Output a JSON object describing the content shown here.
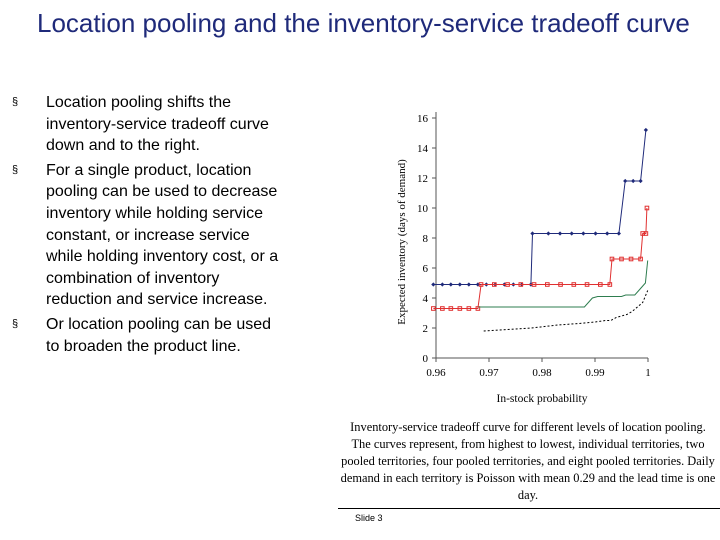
{
  "slide": {
    "title": "Location pooling and the inventory-service tradeoff curve",
    "bullets": [
      "Location pooling shifts the inventory-service tradeoff curve down and to the right.",
      "For a single product, location pooling can be used to decrease inventory while holding service constant, or increase service while holding inventory cost, or a combination of inventory reduction and service increase.",
      "Or location pooling can be used to broaden the product line."
    ],
    "bullet_marker": "§",
    "caption": "Inventory-service tradeoff curve for different levels of location pooling. The curves represent, from highest to lowest, individual territories, two pooled territories, four pooled territories, and eight pooled territories.  Daily demand in each territory is Poisson with mean 0.29 and the lead time is one day.",
    "slide_number": "Slide 3"
  },
  "chart_data": {
    "type": "line",
    "xlabel": "In-stock probability",
    "ylabel": "Expected inventory (days of demand)",
    "xlim": [
      0.96,
      1.0
    ],
    "ylim": [
      0,
      16
    ],
    "x_ticks": [
      "0.96",
      "0.97",
      "0.98",
      "0.99",
      "1"
    ],
    "y_ticks": [
      "0",
      "2",
      "4",
      "6",
      "8",
      "10",
      "12",
      "14",
      "16"
    ],
    "grid": false,
    "legend": "none",
    "series": [
      {
        "color": "#1f2a7a",
        "marker": "diamond",
        "style": "solid",
        "points": [
          [
            0.9595,
            4.9
          ],
          [
            0.9612,
            4.9
          ],
          [
            0.9628,
            4.9
          ],
          [
            0.9645,
            4.9
          ],
          [
            0.9662,
            4.9
          ],
          [
            0.9679,
            4.9
          ],
          [
            0.9695,
            4.9
          ],
          [
            0.9712,
            4.9
          ],
          [
            0.9729,
            4.9
          ],
          [
            0.9746,
            4.9
          ],
          [
            0.9762,
            4.9
          ],
          [
            0.9779,
            4.9
          ],
          [
            0.9782,
            8.3
          ],
          [
            0.9812,
            8.3
          ],
          [
            0.9834,
            8.3
          ],
          [
            0.9856,
            8.3
          ],
          [
            0.9878,
            8.3
          ],
          [
            0.9901,
            8.3
          ],
          [
            0.9923,
            8.3
          ],
          [
            0.9945,
            8.3
          ],
          [
            0.9957,
            11.8
          ],
          [
            0.9972,
            11.8
          ],
          [
            0.9986,
            11.8
          ],
          [
            0.9996,
            15.2
          ]
        ]
      },
      {
        "color": "#e03030",
        "marker": "square",
        "style": "solid",
        "points": [
          [
            0.9595,
            3.3
          ],
          [
            0.9612,
            3.3
          ],
          [
            0.9628,
            3.3
          ],
          [
            0.9645,
            3.3
          ],
          [
            0.9662,
            3.3
          ],
          [
            0.9679,
            3.3
          ],
          [
            0.9685,
            4.9
          ],
          [
            0.971,
            4.9
          ],
          [
            0.9735,
            4.9
          ],
          [
            0.976,
            4.9
          ],
          [
            0.9785,
            4.9
          ],
          [
            0.981,
            4.9
          ],
          [
            0.9835,
            4.9
          ],
          [
            0.986,
            4.9
          ],
          [
            0.9885,
            4.9
          ],
          [
            0.991,
            4.9
          ],
          [
            0.9928,
            4.9
          ],
          [
            0.9932,
            6.6
          ],
          [
            0.995,
            6.6
          ],
          [
            0.9968,
            6.6
          ],
          [
            0.9986,
            6.6
          ],
          [
            0.999,
            8.3
          ],
          [
            0.9996,
            8.3
          ],
          [
            0.9998,
            10.0
          ]
        ]
      },
      {
        "color": "#2e7d4f",
        "marker": "none",
        "style": "solid",
        "points": [
          [
            0.968,
            3.4
          ],
          [
            0.98,
            3.4
          ],
          [
            0.987,
            3.4
          ],
          [
            0.988,
            3.4
          ],
          [
            0.9895,
            4.0
          ],
          [
            0.9905,
            4.1
          ],
          [
            0.992,
            4.1
          ],
          [
            0.995,
            4.1
          ],
          [
            0.9958,
            4.2
          ],
          [
            0.9975,
            4.2
          ],
          [
            0.9985,
            4.6
          ],
          [
            0.9995,
            5.0
          ],
          [
            0.99995,
            6.5
          ]
        ]
      },
      {
        "color": "#000000",
        "marker": "none",
        "style": "dotted",
        "points": [
          [
            0.969,
            1.8
          ],
          [
            0.978,
            2.0
          ],
          [
            0.983,
            2.2
          ],
          [
            0.987,
            2.3
          ],
          [
            0.99,
            2.4
          ],
          [
            0.992,
            2.5
          ],
          [
            0.993,
            2.5
          ],
          [
            0.994,
            2.7
          ],
          [
            0.996,
            2.9
          ],
          [
            0.997,
            3.1
          ],
          [
            0.998,
            3.4
          ],
          [
            0.999,
            3.7
          ],
          [
            0.99995,
            4.5
          ]
        ]
      }
    ]
  }
}
